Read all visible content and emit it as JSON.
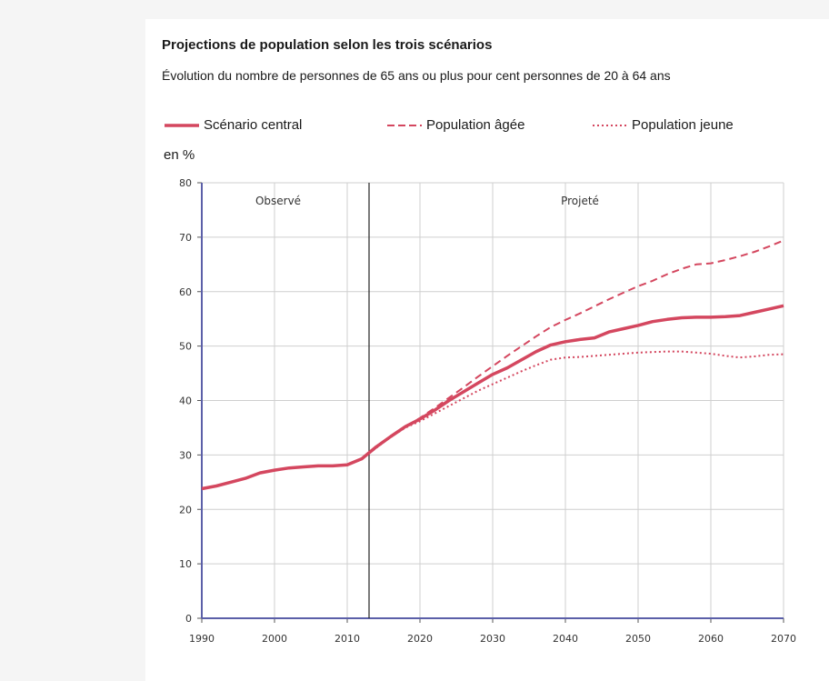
{
  "chart_data": {
    "type": "line",
    "title": "Projections de population selon les trois scénarios",
    "subtitle": "Évolution du nombre de personnes de 65 ans ou plus pour cent personnes de 20 à 64 ans",
    "ylabel": "en %",
    "xlabel": "",
    "xlim": [
      1990,
      2070
    ],
    "ylim": [
      0,
      80
    ],
    "xticks": [
      "1990",
      "2000",
      "2010",
      "2020",
      "2030",
      "2040",
      "2050",
      "2060",
      "2070"
    ],
    "yticks": [
      "0",
      "10",
      "20",
      "30",
      "40",
      "50",
      "60",
      "70",
      "80"
    ],
    "grid": true,
    "legend_position": "top",
    "divider_x": 2013,
    "annotations": [
      {
        "text": "Observé",
        "x": 2000.5,
        "y": 76
      },
      {
        "text": "Projeté",
        "x": 2042,
        "y": 76
      }
    ],
    "series": [
      {
        "name": "Scénario central",
        "style": "solid",
        "color": "#d4475f",
        "x": [
          1990,
          1992,
          1994,
          1996,
          1998,
          2000,
          2002,
          2004,
          2006,
          2008,
          2010,
          2012,
          2014,
          2016,
          2018,
          2020,
          2022,
          2024,
          2026,
          2028,
          2030,
          2032,
          2034,
          2036,
          2038,
          2040,
          2042,
          2044,
          2046,
          2048,
          2050,
          2052,
          2054,
          2056,
          2058,
          2060,
          2062,
          2064,
          2066,
          2068,
          2070
        ],
        "y": [
          23.8,
          24.3,
          25.0,
          25.7,
          26.7,
          27.2,
          27.6,
          27.8,
          28.0,
          28.0,
          28.2,
          29.3,
          31.5,
          33.4,
          35.2,
          36.6,
          38.2,
          40.0,
          41.6,
          43.2,
          44.8,
          46.0,
          47.5,
          49.0,
          50.2,
          50.8,
          51.2,
          51.5,
          52.6,
          53.2,
          53.8,
          54.5,
          54.9,
          55.2,
          55.3,
          55.3,
          55.4,
          55.6,
          56.2,
          56.8,
          57.4
        ]
      },
      {
        "name": "Population âgée",
        "style": "dashed",
        "color": "#d4475f",
        "x": [
          2013,
          2016,
          2018,
          2020,
          2022,
          2024,
          2026,
          2028,
          2030,
          2032,
          2034,
          2036,
          2038,
          2040,
          2042,
          2044,
          2046,
          2048,
          2050,
          2052,
          2054,
          2056,
          2058,
          2060,
          2062,
          2064,
          2066,
          2068,
          2070
        ],
        "y": [
          30.3,
          33.4,
          35.2,
          36.8,
          38.6,
          40.5,
          42.4,
          44.4,
          46.3,
          48.2,
          50.0,
          51.8,
          53.5,
          54.8,
          56.0,
          57.3,
          58.6,
          59.8,
          61.0,
          62.0,
          63.2,
          64.2,
          65.0,
          65.2,
          65.8,
          66.5,
          67.3,
          68.3,
          69.4
        ]
      },
      {
        "name": "Population jeune",
        "style": "dotted",
        "color": "#d4475f",
        "x": [
          2013,
          2016,
          2018,
          2020,
          2022,
          2024,
          2026,
          2028,
          2030,
          2032,
          2034,
          2036,
          2038,
          2040,
          2042,
          2044,
          2046,
          2048,
          2050,
          2052,
          2054,
          2056,
          2058,
          2060,
          2062,
          2064,
          2066,
          2068,
          2070
        ],
        "y": [
          30.3,
          33.3,
          35.0,
          36.2,
          37.6,
          39.0,
          40.4,
          41.8,
          43.0,
          44.2,
          45.4,
          46.5,
          47.5,
          47.9,
          48.0,
          48.2,
          48.4,
          48.6,
          48.8,
          48.9,
          49.0,
          49.0,
          48.8,
          48.6,
          48.2,
          47.9,
          48.1,
          48.4,
          48.5
        ]
      }
    ]
  }
}
